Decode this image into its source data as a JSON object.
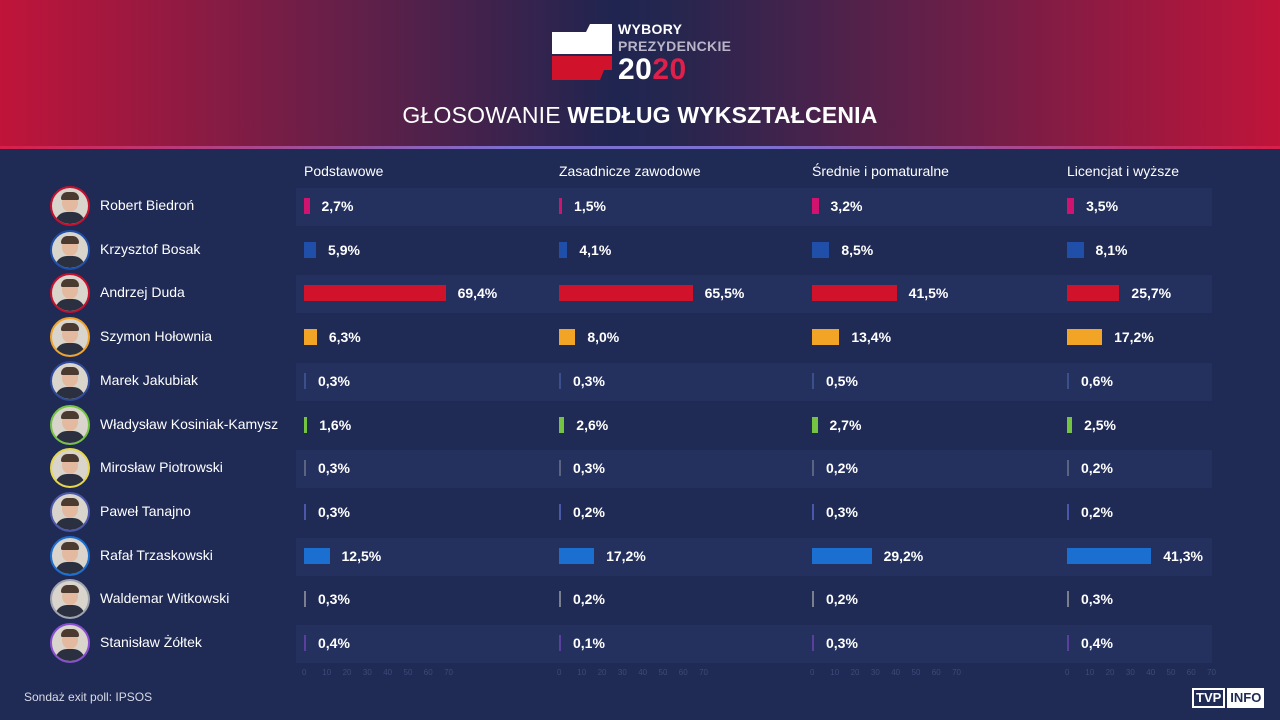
{
  "logo": {
    "line1": "WYBORY",
    "line2": "PREZYDENCKIE",
    "year1": "20",
    "year2": "20"
  },
  "title": {
    "light": "GŁOSOWANIE ",
    "bold": "WEDŁUG WYKSZTAŁCENIA"
  },
  "footer": "Sondaż exit poll: IPSOS",
  "brand": {
    "box": "TVP",
    "info": "INFO"
  },
  "colors": {
    "header_red": "#c0143a",
    "background": "#1f2a55",
    "biedron": "#d0136f",
    "bosak": "#1f4fa8",
    "duda": "#d0132a",
    "holownia": "#f2a426",
    "jakubiak": "#3a4f8c",
    "kosiniak": "#74c442",
    "piotrowski": "#5a6380",
    "tanajno": "#4b57a8",
    "trzaskowski": "#1a6fd0",
    "witkowski": "#7a7f90",
    "zoltek": "#5a3f9e"
  },
  "chart_data": {
    "type": "bar",
    "orientation": "horizontal",
    "title": "GŁOSOWANIE WEDŁUG WYKSZTAŁCENIA",
    "categories": [
      "Robert Biedroń",
      "Krzysztof Bosak",
      "Andrzej Duda",
      "Szymon Hołownia",
      "Marek Jakubiak",
      "Władysław Kosiniak-Kamysz",
      "Mirosław Piotrowski",
      "Paweł Tanajno",
      "Rafał Trzaskowski",
      "Waldemar Witkowski",
      "Stanisław Żółtek"
    ],
    "category_colors": [
      "#d0136f",
      "#1f4fa8",
      "#d0132a",
      "#f2a426",
      "#3a4f8c",
      "#74c442",
      "#5a6380",
      "#4b57a8",
      "#1a6fd0",
      "#7a7f90",
      "#5a3f9e"
    ],
    "avatar_border_colors": [
      "#c8102e",
      "#1f4fa8",
      "#c8102e",
      "#f2a426",
      "#2f4a9a",
      "#74c442",
      "#e6d84a",
      "#4b57a8",
      "#1a6fd0",
      "#a0a4b0",
      "#8a4fd0"
    ],
    "series": [
      {
        "name": "Podstawowe",
        "values": [
          2.7,
          5.9,
          69.4,
          6.3,
          0.3,
          1.6,
          0.3,
          0.3,
          12.5,
          0.3,
          0.4
        ],
        "labels": [
          "2,7%",
          "5,9%",
          "69,4%",
          "6,3%",
          "0,3%",
          "1,6%",
          "0,3%",
          "0,3%",
          "12,5%",
          "0,3%",
          "0,4%"
        ]
      },
      {
        "name": "Zasadnicze zawodowe",
        "values": [
          1.5,
          4.1,
          65.5,
          8.0,
          0.3,
          2.6,
          0.3,
          0.2,
          17.2,
          0.2,
          0.1
        ],
        "labels": [
          "1,5%",
          "4,1%",
          "65,5%",
          "8,0%",
          "0,3%",
          "2,6%",
          "0,3%",
          "0,2%",
          "17,2%",
          "0,2%",
          "0,1%"
        ]
      },
      {
        "name": "Średnie i pomaturalne",
        "values": [
          3.2,
          8.5,
          41.5,
          13.4,
          0.5,
          2.7,
          0.2,
          0.3,
          29.2,
          0.2,
          0.3
        ],
        "labels": [
          "3,2%",
          "8,5%",
          "41,5%",
          "13,4%",
          "0,5%",
          "2,7%",
          "0,2%",
          "0,3%",
          "29,2%",
          "0,2%",
          "0,3%"
        ]
      },
      {
        "name": "Licencjat i wyższe",
        "values": [
          3.5,
          8.1,
          25.7,
          17.2,
          0.6,
          2.5,
          0.2,
          0.2,
          41.3,
          0.3,
          0.4
        ],
        "labels": [
          "3,5%",
          "8,1%",
          "25,7%",
          "17,2%",
          "0,6%",
          "2,5%",
          "0,2%",
          "0,2%",
          "41,3%",
          "0,3%",
          "0,4%"
        ]
      }
    ],
    "axis_ticks": [
      "0",
      "10",
      "20",
      "30",
      "40",
      "50",
      "60",
      "70"
    ],
    "xlim": [
      0,
      70
    ],
    "grid": false
  }
}
